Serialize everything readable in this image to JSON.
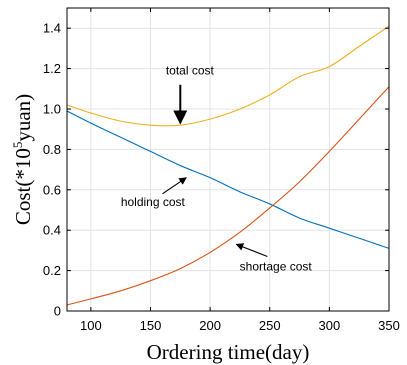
{
  "chart_data": {
    "type": "line",
    "xlabel": "Ordering time(day)",
    "ylabel": {
      "prefix": "Cost(*10",
      "sup": "5",
      "suffix": "yuan)"
    },
    "xlim": [
      80,
      350
    ],
    "ylim": [
      0,
      1.5
    ],
    "xticks": [
      100,
      150,
      200,
      250,
      300,
      350
    ],
    "yticks": [
      0,
      0.2,
      0.4,
      0.6,
      0.8,
      1.0,
      1.2,
      1.4
    ],
    "xtick_labels": [
      "100",
      "150",
      "200",
      "250",
      "300",
      "350"
    ],
    "ytick_labels": [
      "0",
      "0.2",
      "0.4",
      "0.6",
      "0.8",
      "1.0",
      "1.2",
      "1.4"
    ],
    "grid": true,
    "series": [
      {
        "name": "total cost",
        "color": "#EDB120",
        "x": [
          80,
          100,
          125,
          150,
          175,
          200,
          225,
          250,
          275,
          300,
          325,
          350
        ],
        "y": [
          1.02,
          0.98,
          0.94,
          0.92,
          0.92,
          0.95,
          1.0,
          1.07,
          1.16,
          1.21,
          1.31,
          1.41
        ]
      },
      {
        "name": "holding cost",
        "color": "#0072BD",
        "x": [
          80,
          100,
          125,
          150,
          175,
          200,
          225,
          250,
          275,
          300,
          325,
          350
        ],
        "y": [
          0.99,
          0.93,
          0.86,
          0.79,
          0.72,
          0.66,
          0.59,
          0.53,
          0.46,
          0.41,
          0.36,
          0.31
        ]
      },
      {
        "name": "shortage cost",
        "color": "#D95319",
        "x": [
          80,
          100,
          125,
          150,
          175,
          200,
          225,
          250,
          275,
          300,
          325,
          350
        ],
        "y": [
          0.03,
          0.06,
          0.1,
          0.15,
          0.21,
          0.29,
          0.39,
          0.51,
          0.64,
          0.79,
          0.95,
          1.11
        ]
      }
    ],
    "annotations": [
      {
        "text": "total cost",
        "label_at": [
          183,
          1.17
        ],
        "arrow_from": [
          175,
          1.12
        ],
        "arrow_to": [
          175,
          0.93
        ]
      },
      {
        "text": "holding cost",
        "label_at": [
          152,
          0.52
        ],
        "arrow_from": [
          160,
          0.58
        ],
        "arrow_to": [
          180,
          0.66
        ]
      },
      {
        "text": "shortage cost",
        "label_at": [
          255,
          0.2
        ],
        "arrow_from": [
          248,
          0.27
        ],
        "arrow_to": [
          222,
          0.33
        ]
      }
    ]
  }
}
